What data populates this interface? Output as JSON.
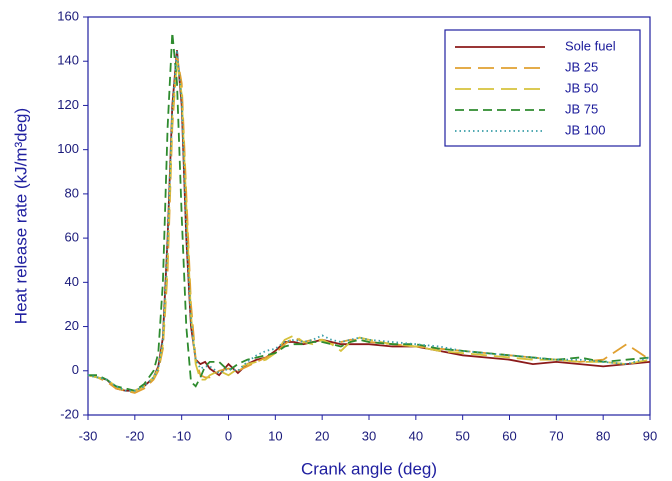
{
  "chart_data": {
    "type": "line",
    "x_label": "Crank angle (deg)",
    "y_label": "Heat release rate (kJ/m³deg)",
    "xlim": [
      -30,
      90
    ],
    "xticks": [
      -30,
      -20,
      -10,
      0,
      10,
      20,
      30,
      40,
      50,
      60,
      70,
      80,
      90
    ],
    "ylim": [
      -20,
      160
    ],
    "yticks": [
      -20,
      0,
      20,
      40,
      60,
      80,
      100,
      120,
      140,
      160
    ],
    "legend": "upper right",
    "x": [
      -30,
      -28,
      -26,
      -24,
      -22,
      -20,
      -18,
      -16,
      -15,
      -14,
      -13,
      -12,
      -11,
      -10,
      -9,
      -8,
      -7,
      -6,
      -5,
      -4,
      -2,
      0,
      2,
      4,
      6,
      8,
      10,
      12,
      14,
      16,
      18,
      20,
      22,
      24,
      26,
      28,
      30,
      35,
      40,
      45,
      50,
      55,
      60,
      65,
      70,
      75,
      80,
      85,
      90
    ],
    "series": [
      {
        "name": "Sole fuel",
        "color": "#8b1a1a",
        "dash": "solid",
        "values": [
          -2,
          -3,
          -4,
          -8,
          -9,
          -9,
          -7,
          -3,
          2,
          15,
          60,
          120,
          145,
          120,
          60,
          20,
          5,
          3,
          4,
          1,
          -2,
          3,
          -1,
          3,
          5,
          6,
          9,
          13,
          13,
          12,
          13,
          14,
          13,
          12,
          12,
          12,
          12,
          11,
          11,
          9,
          7,
          6,
          5,
          3,
          4,
          3,
          2,
          3,
          4
        ]
      },
      {
        "name": "JB 25",
        "color": "#e0a030",
        "dash": "long",
        "values": [
          -2,
          -3,
          -5,
          -8,
          -9,
          -10,
          -8,
          -4,
          0,
          10,
          45,
          110,
          142,
          130,
          80,
          30,
          5,
          -2,
          -3,
          -3,
          0,
          1,
          0,
          2,
          4,
          6,
          8,
          12,
          15,
          13,
          14,
          14,
          12,
          13,
          14,
          14,
          13,
          12,
          11,
          10,
          9,
          8,
          7,
          6,
          5,
          4,
          5,
          12,
          5
        ]
      },
      {
        "name": "JB 50",
        "color": "#d6c23c",
        "dash": "long",
        "values": [
          -2,
          -3,
          -4,
          -7,
          -9,
          -9,
          -7,
          -3,
          1,
          12,
          50,
          115,
          140,
          125,
          75,
          25,
          3,
          -4,
          -4,
          -2,
          0,
          -2,
          1,
          3,
          4,
          5,
          8,
          14,
          16,
          13,
          12,
          14,
          12,
          9,
          13,
          15,
          14,
          12,
          11,
          9,
          8,
          7,
          6,
          5,
          5,
          4,
          4,
          3,
          5
        ]
      },
      {
        "name": "JB 75",
        "color": "#2e8b2e",
        "dash": "medium",
        "values": [
          -2,
          -2,
          -4,
          -7,
          -8,
          -9,
          -6,
          0,
          8,
          40,
          110,
          153,
          130,
          70,
          20,
          -5,
          -7,
          -3,
          2,
          4,
          4,
          0,
          3,
          5,
          6,
          7,
          8,
          11,
          12,
          12,
          13,
          13,
          12,
          11,
          13,
          14,
          13,
          12,
          12,
          10,
          9,
          8,
          7,
          6,
          5,
          6,
          4,
          5,
          6
        ]
      },
      {
        "name": "JB 100",
        "color": "#3a9ea8",
        "dash": "dotted",
        "values": [
          -2,
          -3,
          -4,
          -7,
          -9,
          -9,
          -7,
          -3,
          1,
          14,
          58,
          118,
          145,
          122,
          62,
          22,
          5,
          1,
          2,
          2,
          -1,
          1,
          0,
          4,
          7,
          9,
          10,
          13,
          14,
          13,
          14,
          16,
          14,
          13,
          14,
          15,
          14,
          13,
          12,
          11,
          9,
          8,
          7,
          6,
          5,
          5,
          4,
          3,
          6
        ]
      }
    ]
  }
}
